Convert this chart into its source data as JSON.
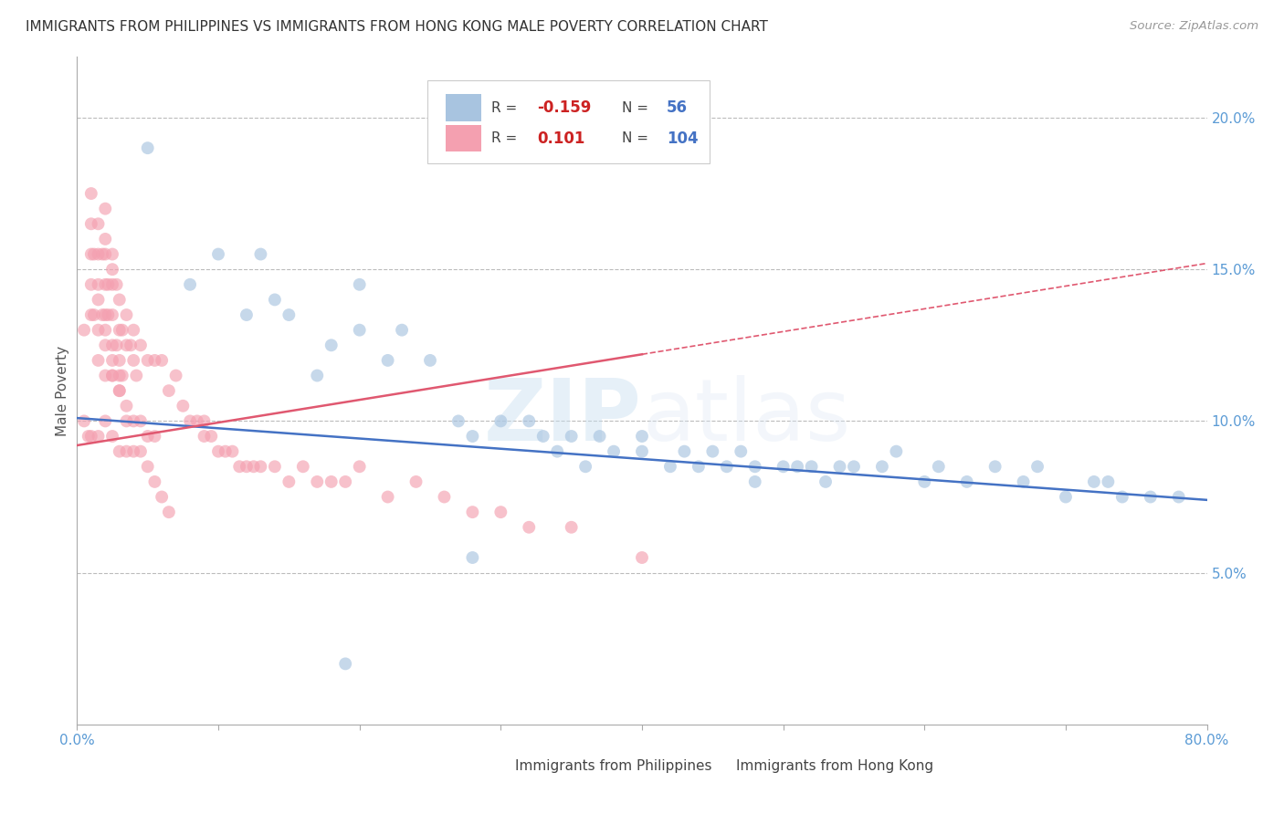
{
  "title": "IMMIGRANTS FROM PHILIPPINES VS IMMIGRANTS FROM HONG KONG MALE POVERTY CORRELATION CHART",
  "source": "Source: ZipAtlas.com",
  "ylabel": "Male Poverty",
  "x_label_phil": "Immigrants from Philippines",
  "x_label_hk": "Immigrants from Hong Kong",
  "xlim": [
    0.0,
    0.8
  ],
  "ylim": [
    0.0,
    0.22
  ],
  "x_ticks": [
    0.0,
    0.1,
    0.2,
    0.3,
    0.4,
    0.5,
    0.6,
    0.7,
    0.8
  ],
  "y_ticks": [
    0.05,
    0.1,
    0.15,
    0.2
  ],
  "y_tick_labels": [
    "5.0%",
    "10.0%",
    "15.0%",
    "20.0%"
  ],
  "phil_R": -0.159,
  "phil_N": 56,
  "hk_R": 0.101,
  "hk_N": 104,
  "phil_color": "#a8c4e0",
  "hk_color": "#f4a0b0",
  "phil_line_color": "#4472c4",
  "hk_line_color": "#e05870",
  "background_color": "#ffffff",
  "grid_color": "#bbbbbb",
  "title_color": "#333333",
  "axis_tick_color": "#5b9bd5",
  "watermark_color": "#d6eaf8",
  "phil_scatter_x": [
    0.05,
    0.08,
    0.1,
    0.12,
    0.13,
    0.14,
    0.15,
    0.17,
    0.18,
    0.2,
    0.2,
    0.22,
    0.23,
    0.25,
    0.27,
    0.28,
    0.3,
    0.32,
    0.33,
    0.34,
    0.35,
    0.36,
    0.37,
    0.38,
    0.4,
    0.4,
    0.42,
    0.43,
    0.44,
    0.45,
    0.46,
    0.47,
    0.48,
    0.48,
    0.5,
    0.51,
    0.52,
    0.53,
    0.54,
    0.55,
    0.57,
    0.58,
    0.6,
    0.61,
    0.63,
    0.65,
    0.67,
    0.68,
    0.7,
    0.72,
    0.73,
    0.74,
    0.76,
    0.78,
    0.28,
    0.19
  ],
  "phil_scatter_y": [
    0.19,
    0.145,
    0.155,
    0.135,
    0.155,
    0.14,
    0.135,
    0.115,
    0.125,
    0.145,
    0.13,
    0.12,
    0.13,
    0.12,
    0.1,
    0.095,
    0.1,
    0.1,
    0.095,
    0.09,
    0.095,
    0.085,
    0.095,
    0.09,
    0.095,
    0.09,
    0.085,
    0.09,
    0.085,
    0.09,
    0.085,
    0.09,
    0.085,
    0.08,
    0.085,
    0.085,
    0.085,
    0.08,
    0.085,
    0.085,
    0.085,
    0.09,
    0.08,
    0.085,
    0.08,
    0.085,
    0.08,
    0.085,
    0.075,
    0.08,
    0.08,
    0.075,
    0.075,
    0.075,
    0.055,
    0.02
  ],
  "hk_scatter_x": [
    0.005,
    0.005,
    0.008,
    0.01,
    0.01,
    0.01,
    0.01,
    0.012,
    0.012,
    0.015,
    0.015,
    0.015,
    0.015,
    0.015,
    0.018,
    0.018,
    0.02,
    0.02,
    0.02,
    0.02,
    0.02,
    0.02,
    0.02,
    0.022,
    0.022,
    0.025,
    0.025,
    0.025,
    0.025,
    0.025,
    0.025,
    0.025,
    0.028,
    0.028,
    0.03,
    0.03,
    0.03,
    0.03,
    0.03,
    0.032,
    0.032,
    0.035,
    0.035,
    0.035,
    0.038,
    0.04,
    0.04,
    0.04,
    0.042,
    0.045,
    0.045,
    0.05,
    0.05,
    0.055,
    0.055,
    0.06,
    0.065,
    0.07,
    0.075,
    0.08,
    0.085,
    0.09,
    0.09,
    0.095,
    0.1,
    0.105,
    0.11,
    0.115,
    0.12,
    0.125,
    0.13,
    0.14,
    0.15,
    0.16,
    0.17,
    0.18,
    0.19,
    0.2,
    0.22,
    0.24,
    0.26,
    0.28,
    0.3,
    0.32,
    0.35,
    0.4,
    0.01,
    0.015,
    0.02,
    0.025,
    0.03,
    0.035,
    0.04,
    0.045,
    0.05,
    0.055,
    0.06,
    0.065,
    0.01,
    0.015,
    0.02,
    0.025,
    0.03,
    0.035
  ],
  "hk_scatter_y": [
    0.13,
    0.1,
    0.095,
    0.175,
    0.165,
    0.155,
    0.095,
    0.155,
    0.135,
    0.165,
    0.155,
    0.145,
    0.12,
    0.095,
    0.155,
    0.135,
    0.17,
    0.16,
    0.155,
    0.145,
    0.135,
    0.115,
    0.1,
    0.145,
    0.135,
    0.155,
    0.15,
    0.145,
    0.135,
    0.125,
    0.115,
    0.095,
    0.145,
    0.125,
    0.14,
    0.13,
    0.12,
    0.115,
    0.09,
    0.13,
    0.115,
    0.135,
    0.125,
    0.09,
    0.125,
    0.13,
    0.12,
    0.09,
    0.115,
    0.125,
    0.1,
    0.12,
    0.095,
    0.12,
    0.095,
    0.12,
    0.11,
    0.115,
    0.105,
    0.1,
    0.1,
    0.1,
    0.095,
    0.095,
    0.09,
    0.09,
    0.09,
    0.085,
    0.085,
    0.085,
    0.085,
    0.085,
    0.08,
    0.085,
    0.08,
    0.08,
    0.08,
    0.085,
    0.075,
    0.08,
    0.075,
    0.07,
    0.07,
    0.065,
    0.065,
    0.055,
    0.135,
    0.13,
    0.125,
    0.115,
    0.11,
    0.105,
    0.1,
    0.09,
    0.085,
    0.08,
    0.075,
    0.07,
    0.145,
    0.14,
    0.13,
    0.12,
    0.11,
    0.1
  ],
  "phil_line_x0": 0.0,
  "phil_line_y0": 0.101,
  "phil_line_x1": 0.8,
  "phil_line_y1": 0.074,
  "hk_line_solid_x0": 0.0,
  "hk_line_solid_y0": 0.092,
  "hk_line_solid_x1": 0.4,
  "hk_line_solid_y1": 0.122,
  "hk_line_dash_x0": 0.4,
  "hk_line_dash_y0": 0.122,
  "hk_line_dash_x1": 0.8,
  "hk_line_dash_y1": 0.152
}
